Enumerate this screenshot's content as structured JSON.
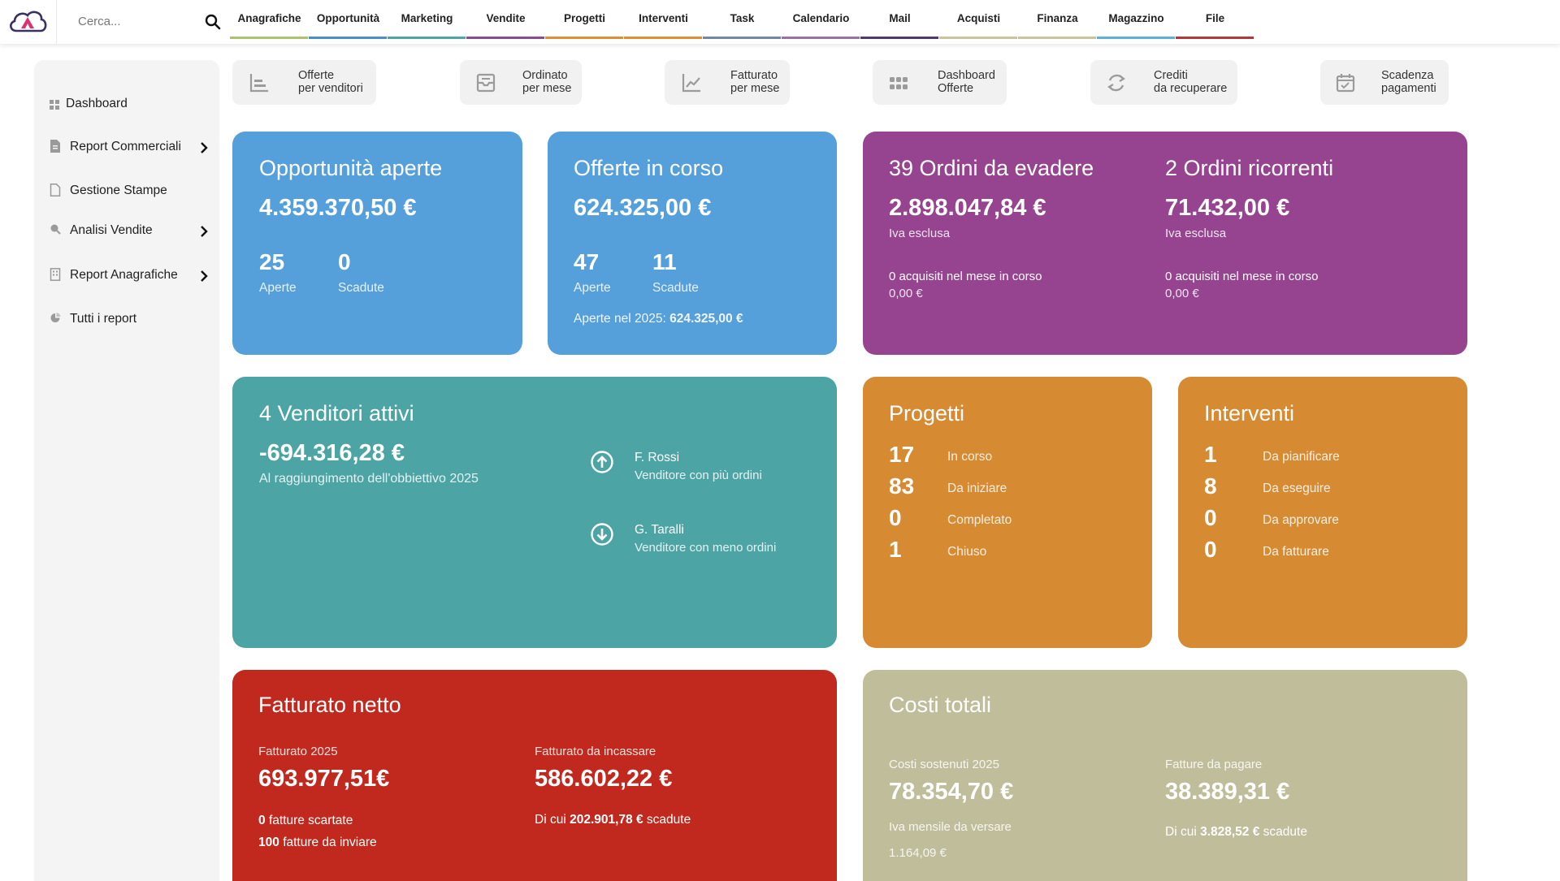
{
  "search": {
    "placeholder": "Cerca..."
  },
  "nav": [
    {
      "label": "Anagrafiche",
      "color": "#a9c46a"
    },
    {
      "label": "Opportunità",
      "color": "#4a8ec9"
    },
    {
      "label": "Marketing",
      "color": "#4fa4a4"
    },
    {
      "label": "Vendite",
      "color": "#8c4a92"
    },
    {
      "label": "Progetti",
      "color": "#df8c32"
    },
    {
      "label": "Interventi",
      "color": "#df8c32"
    },
    {
      "label": "Task",
      "color": "#6f88a8"
    },
    {
      "label": "Calendario",
      "color": "#9b6fa8"
    },
    {
      "label": "Mail",
      "color": "#4d3b6e"
    },
    {
      "label": "Acquisti",
      "color": "#c9c49a"
    },
    {
      "label": "Finanza",
      "color": "#c9c49a"
    },
    {
      "label": "Magazzino",
      "color": "#5ab0d6"
    },
    {
      "label": "File",
      "color": "#b23838"
    }
  ],
  "sidebar": {
    "items": [
      {
        "label": "Dashboard",
        "icon": "grid-icon",
        "chevron": false
      },
      {
        "label": "Report Commerciali",
        "icon": "document-icon",
        "chevron": true
      },
      {
        "label": "Gestione Stampe",
        "icon": "page-icon",
        "chevron": false
      },
      {
        "label": "Analisi Vendite",
        "icon": "magnifier-icon",
        "chevron": true
      },
      {
        "label": "Report Anagrafiche",
        "icon": "building-icon",
        "chevron": true
      },
      {
        "label": "Tutti i report",
        "icon": "pie-icon",
        "chevron": false
      }
    ]
  },
  "quick": [
    {
      "line1": "Offerte",
      "line2": "per venditori",
      "icon": "bar-chart-icon"
    },
    {
      "line1": "Ordinato",
      "line2": "per mese",
      "icon": "inbox-icon"
    },
    {
      "line1": "Fatturato",
      "line2": "per mese",
      "icon": "line-chart-icon"
    },
    {
      "line1": "Dashboard",
      "line2": "Offerte",
      "icon": "apps-icon"
    },
    {
      "line1": "Crediti",
      "line2": "da recuperare",
      "icon": "refresh-icon"
    },
    {
      "line1": "Scadenza",
      "line2": "pagamenti",
      "icon": "calendar-check-icon"
    }
  ],
  "colors": {
    "blue": "#559fdb",
    "purple": "#96448f",
    "teal": "#4ca4a4",
    "orange": "#d68a31",
    "red": "#c2291e",
    "khaki": "#c0bd9b"
  },
  "opportunita": {
    "title": "Opportunità aperte",
    "amount": "4.359.370,50 €",
    "aperte_num": "25",
    "aperte_label": "Aperte",
    "scadute_num": "0",
    "scadute_label": "Scadute"
  },
  "offerte": {
    "title": "Offerte in corso",
    "amount": "624.325,00 €",
    "aperte_num": "47",
    "aperte_label": "Aperte",
    "scadute_num": "11",
    "scadute_label": "Scadute",
    "year_label": "Aperte nel 2025:",
    "year_value": "624.325,00 €"
  },
  "ordini": {
    "evadere_title": "39 Ordini da evadere",
    "evadere_amount": "2.898.047,84 €",
    "evadere_iva": "Iva esclusa",
    "evadere_acq": "0 acquisiti nel mese in corso",
    "evadere_acq_val": "0,00 €",
    "ricorrenti_title": "2 Ordini ricorrenti",
    "ricorrenti_amount": "71.432,00 €",
    "ricorrenti_iva": "Iva esclusa",
    "ricorrenti_acq": "0 acquisiti nel mese in corso",
    "ricorrenti_acq_val": "0,00 €"
  },
  "venditori": {
    "title": "4 Venditori attivi",
    "amount": "-694.316,28 €",
    "subtitle": "Al raggiungimento dell'obbiettivo 2025",
    "top_name": "F. Rossi",
    "top_desc": "Venditore con più ordini",
    "bottom_name": "G. Taralli",
    "bottom_desc": "Venditore con meno ordini"
  },
  "progetti": {
    "title": "Progetti",
    "rows": [
      {
        "num": "17",
        "label": "In corso"
      },
      {
        "num": "83",
        "label": "Da iniziare"
      },
      {
        "num": "0",
        "label": "Completato"
      },
      {
        "num": "1",
        "label": "Chiuso"
      }
    ]
  },
  "interventi": {
    "title": "Interventi",
    "rows": [
      {
        "num": "1",
        "label": "Da pianificare"
      },
      {
        "num": "8",
        "label": "Da eseguire"
      },
      {
        "num": "0",
        "label": "Da approvare"
      },
      {
        "num": "0",
        "label": "Da fatturare"
      }
    ]
  },
  "fatturato": {
    "title": "Fatturato netto",
    "label_2025": "Fatturato 2025",
    "amount_2025": "693.977,51€",
    "scartate_num": "0",
    "scartate_label": "fatture scartate",
    "inviare_num": "100",
    "inviare_label": "fatture da inviare",
    "label_incassare": "Fatturato da incassare",
    "amount_incassare": "586.602,22 €",
    "dicui_prefix": "Di cui",
    "dicui_value": "202.901,78 €",
    "dicui_suffix": "scadute"
  },
  "costi": {
    "title": "Costi totali",
    "label_sostenuti": "Costi sostenuti 2025",
    "amount_sostenuti": "78.354,70 €",
    "iva_label": "Iva mensile da versare",
    "iva_value": "1.164,09 €",
    "label_pagare": "Fatture da pagare",
    "amount_pagare": "38.389,31 €",
    "dicui_prefix": "Di cui",
    "dicui_value": "3.828,52 €",
    "dicui_suffix": "scadute"
  }
}
